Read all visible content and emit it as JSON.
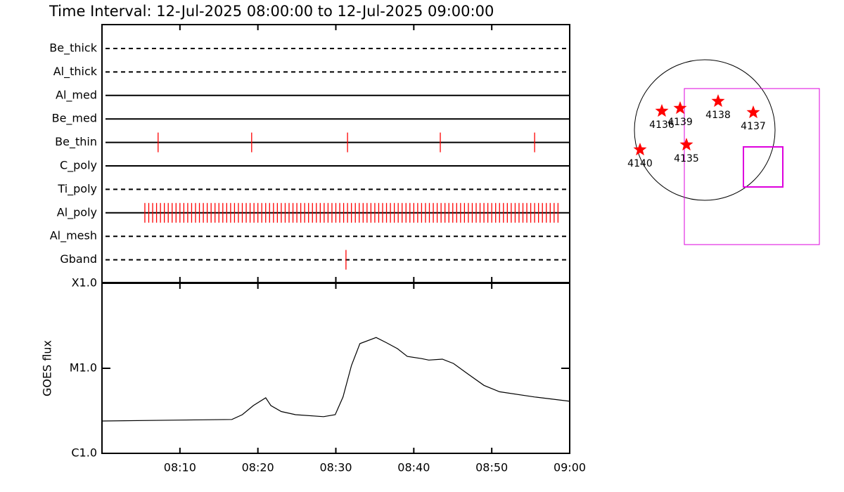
{
  "chart_data": [
    {
      "type": "timeline",
      "title": "Time Interval: 12-Jul-2025 08:00:00 to 12-Jul-2025 09:00:00",
      "categories": [
        "Be_thick",
        "Al_thick",
        "Al_med",
        "Be_med",
        "Be_thin",
        "C_poly",
        "Ti_poly",
        "Al_poly",
        "Al_mesh",
        "Gband"
      ],
      "line_styles": [
        "dashed",
        "dashed",
        "solid",
        "solid",
        "solid",
        "solid",
        "dashed",
        "solid",
        "dashed",
        "dashed"
      ],
      "color": "#ff0000",
      "events": [
        [],
        [],
        [],
        [],
        [
          "08:07:12",
          "08:19:12",
          "08:31:30",
          "08:43:24",
          "08:55:30"
        ],
        [],
        [],
        [
          "08:05:30",
          "08:06:00",
          "08:06:30",
          "08:07:00",
          "08:07:30",
          "08:08:00",
          "08:08:30",
          "08:09:00",
          "08:09:30",
          "08:10:00",
          "08:10:30",
          "08:11:00",
          "08:11:30",
          "08:12:00",
          "08:12:30",
          "08:13:00",
          "08:13:30",
          "08:14:00",
          "08:14:30",
          "08:15:00",
          "08:15:30",
          "08:16:00",
          "08:16:30",
          "08:17:00",
          "08:17:30",
          "08:18:00",
          "08:18:30",
          "08:19:00",
          "08:19:30",
          "08:20:00",
          "08:20:30",
          "08:21:00",
          "08:21:30",
          "08:22:00",
          "08:22:30",
          "08:23:00",
          "08:23:30",
          "08:24:00",
          "08:24:30",
          "08:25:00",
          "08:25:30",
          "08:26:00",
          "08:26:30",
          "08:27:00",
          "08:27:30",
          "08:28:00",
          "08:28:30",
          "08:29:00",
          "08:29:30",
          "08:30:00",
          "08:30:30",
          "08:31:00",
          "08:31:30",
          "08:32:00",
          "08:32:30",
          "08:33:00",
          "08:33:30",
          "08:34:00",
          "08:34:30",
          "08:35:00",
          "08:35:30",
          "08:36:00",
          "08:36:30",
          "08:37:00",
          "08:37:30",
          "08:38:00",
          "08:38:30",
          "08:39:00",
          "08:39:30",
          "08:40:00",
          "08:40:30",
          "08:41:00",
          "08:41:30",
          "08:42:00",
          "08:42:30",
          "08:43:00",
          "08:43:30",
          "08:44:00",
          "08:44:30",
          "08:45:00",
          "08:45:30",
          "08:46:00",
          "08:46:30",
          "08:47:00",
          "08:47:30",
          "08:48:00",
          "08:48:30",
          "08:49:00",
          "08:49:30",
          "08:50:00",
          "08:50:30",
          "08:51:00",
          "08:51:30",
          "08:52:00",
          "08:52:30",
          "08:53:00",
          "08:53:30",
          "08:54:00",
          "08:54:30",
          "08:55:00",
          "08:55:30",
          "08:56:00",
          "08:56:30",
          "08:57:00",
          "08:57:30",
          "08:58:00",
          "08:58:30"
        ],
        [],
        [
          "08:31:18"
        ]
      ],
      "xlim": [
        "08:00",
        "09:00"
      ],
      "xticks": [
        "08:10",
        "08:20",
        "08:30",
        "08:40",
        "08:50",
        "09:00"
      ]
    },
    {
      "type": "line",
      "ylabel": "GOES flux",
      "x": [
        "08:00:00",
        "08:16:40",
        "08:18:00",
        "08:19:25",
        "08:21:00",
        "08:21:40",
        "08:23:00",
        "08:24:50",
        "08:28:25",
        "08:29:55",
        "08:30:55",
        "08:32:00",
        "08:33:05",
        "08:35:10",
        "08:36:30",
        "08:37:55",
        "08:39:10",
        "08:41:00",
        "08:41:55",
        "08:43:40",
        "08:45:05",
        "08:46:55",
        "08:49:00",
        "08:51:00",
        "08:55:30",
        "09:00:00"
      ],
      "values": [
        2.4e-06,
        2.5e-06,
        2.85e-06,
        3.65e-06,
        4.5e-06,
        3.65e-06,
        3.1e-06,
        2.85e-06,
        2.7e-06,
        2.85e-06,
        4.6e-06,
        1.08e-05,
        1.95e-05,
        2.3e-05,
        2e-05,
        1.7e-05,
        1.38e-05,
        1.3e-05,
        1.25e-05,
        1.28e-05,
        1.14e-05,
        8.6e-06,
        6.3e-06,
        5.3e-06,
        4.6e-06,
        4.1e-06
      ],
      "color": "#000000",
      "ylog": true,
      "ylim": [
        1e-06,
        0.0001
      ],
      "yticks": [
        {
          "value": 1e-06,
          "label": "C1.0"
        },
        {
          "value": 1e-05,
          "label": "M1.0"
        },
        {
          "value": 0.0001,
          "label": "X1.0"
        }
      ],
      "xlim": [
        "08:00",
        "09:00"
      ],
      "xticks": [
        "08:10",
        "08:20",
        "08:30",
        "08:40",
        "08:50",
        "09:00"
      ]
    }
  ],
  "map": {
    "regions": [
      {
        "label": "4136"
      },
      {
        "label": "4139"
      },
      {
        "label": "4138"
      },
      {
        "label": "4137"
      },
      {
        "label": "4140"
      },
      {
        "label": "4135"
      }
    ],
    "star_color": "#ff0000",
    "box_color": "#dd00dd"
  }
}
